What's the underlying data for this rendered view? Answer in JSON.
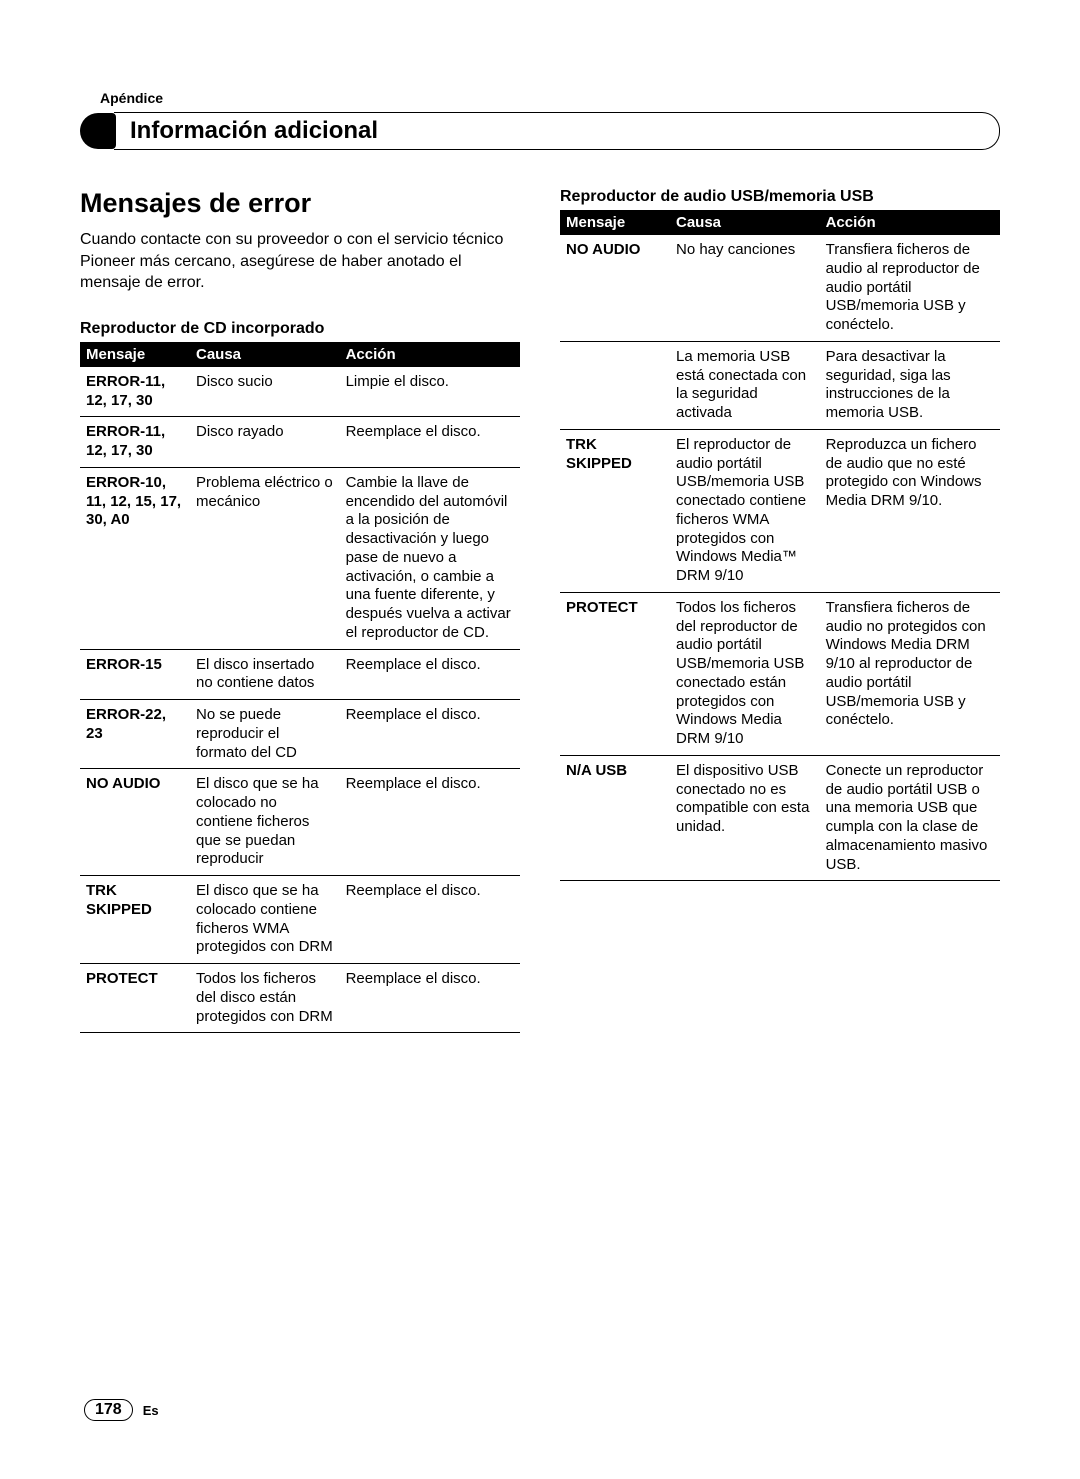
{
  "appendix_label": "Apéndice",
  "section_title": "Información adicional",
  "main_heading": "Mensajes de error",
  "intro_text": "Cuando contacte con su proveedor o con el servicio técnico Pioneer más cercano, asegúrese de haber anotado el mensaje de error.",
  "table1": {
    "caption": "Reproductor de CD incorporado",
    "headers": {
      "msg": "Mensaje",
      "cause": "Causa",
      "action": "Acción"
    },
    "rows": [
      {
        "msg": "ERROR-11, 12, 17, 30",
        "cause": "Disco sucio",
        "action": "Limpie el disco."
      },
      {
        "msg": "ERROR-11, 12, 17, 30",
        "cause": "Disco rayado",
        "action": "Reemplace el disco."
      },
      {
        "msg": "ERROR-10, 11, 12, 15, 17, 30, A0",
        "cause": "Problema eléctrico o mecánico",
        "action": "Cambie la llave de encendido del automóvil a la posición de desactivación y luego pase de nuevo a activación, o cambie a una fuente diferente, y después vuelva a activar el reproductor de CD."
      },
      {
        "msg": "ERROR-15",
        "cause": "El disco insertado no contiene datos",
        "action": "Reemplace el disco."
      },
      {
        "msg": "ERROR-22, 23",
        "cause": "No se puede reproducir el formato del CD",
        "action": "Reemplace el disco."
      },
      {
        "msg": "NO AUDIO",
        "cause": "El disco que se ha colocado no contiene ficheros que se puedan reproducir",
        "action": "Reemplace el disco."
      },
      {
        "msg": "TRK SKIPPED",
        "cause": "El disco que se ha colocado contiene ficheros WMA protegidos con DRM",
        "action": "Reemplace el disco."
      },
      {
        "msg": "PROTECT",
        "cause": "Todos los ficheros del disco están protegidos con DRM",
        "action": "Reemplace el disco."
      }
    ]
  },
  "table2": {
    "caption": "Reproductor de audio USB/memoria USB",
    "headers": {
      "msg": "Mensaje",
      "cause": "Causa",
      "action": "Acción"
    },
    "rows": [
      {
        "msg": "NO AUDIO",
        "cause": "No hay canciones",
        "action": "Transfiera ficheros de audio al reproductor de audio portátil USB/memoria USB y conéctelo."
      },
      {
        "msg": "",
        "cause": "La memoria USB está conectada con la seguridad activada",
        "action": "Para desactivar la seguridad, siga las instrucciones de la memoria USB."
      },
      {
        "msg": "TRK SKIPPED",
        "cause": "El reproductor de audio portátil USB/memoria USB conectado contiene ficheros WMA protegidos con Windows Media™ DRM 9/10",
        "action": "Reproduzca un fichero de audio que no esté protegido con Windows Media DRM 9/10."
      },
      {
        "msg": "PROTECT",
        "cause": "Todos los ficheros del reproductor de audio portátil USB/memoria USB conectado están protegidos con Windows Media DRM 9/10",
        "action": "Transfiera ficheros de audio no protegidos con Windows Media DRM 9/10 al reproductor de audio portátil USB/memoria USB y conéctelo."
      },
      {
        "msg": "N/A USB",
        "cause": "El dispositivo USB conectado no es compatible con esta unidad.",
        "action": "Conecte un reproductor de audio portátil USB o una memoria USB que cumpla con la clase de almacenamiento masivo USB."
      }
    ]
  },
  "page_number": "178",
  "page_lang": "Es",
  "colors": {
    "header_bg": "#000000",
    "header_text": "#ffffff",
    "body_text": "#000000",
    "page_bg": "#ffffff"
  },
  "typography": {
    "main_heading_pt": 27,
    "section_title_pt": 24,
    "body_pt": 16,
    "table_pt": 15,
    "subheading_pt": 16
  }
}
